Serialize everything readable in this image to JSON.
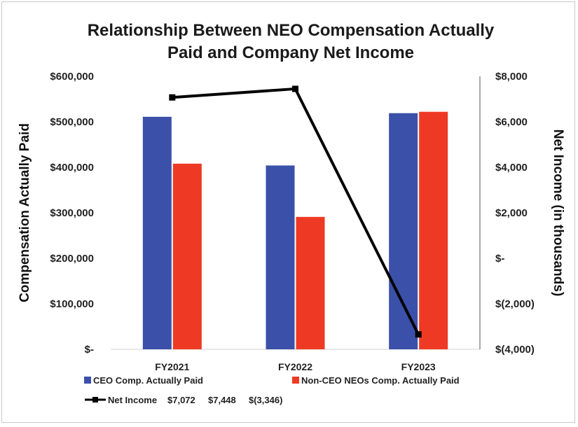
{
  "chart_data": {
    "type": "bar",
    "title_lines": [
      "Relationship Between NEO Compensation Actually",
      "Paid and Company Net Income"
    ],
    "categories": [
      "FY2021",
      "FY2022",
      "FY2023"
    ],
    "series": [
      {
        "name": "CEO Comp. Actually Paid",
        "type": "bar",
        "axis": "left",
        "color": "#3B50A8",
        "values": [
          511000,
          404000,
          519000
        ]
      },
      {
        "name": "Non-CEO NEOs Comp. Actually Paid",
        "type": "bar",
        "axis": "left",
        "color": "#EE3A24",
        "values": [
          408000,
          291000,
          522000
        ]
      },
      {
        "name": "Net Income",
        "type": "line",
        "axis": "right",
        "color": "#000000",
        "values": [
          7072,
          7448,
          -3346
        ]
      }
    ],
    "ylabel_left": "Compensation Actually Paid",
    "ylabel_right": "Net Income (in thousands)",
    "ylim_left": [
      0,
      600000
    ],
    "ylim_right": [
      -4000,
      8000
    ],
    "left_ticks": [
      "$-",
      "$100,000",
      "$200,000",
      "$300,000",
      "$400,000",
      "$500,000",
      "$600,000"
    ],
    "right_ticks": [
      "$(4,000)",
      "$(2,000)",
      "$-",
      "$2,000",
      "$4,000",
      "$6,000",
      "$8,000"
    ],
    "legend": {
      "bar_entries": [
        "CEO Comp. Actually Paid",
        "Non-CEO NEOs Comp. Actually Paid"
      ],
      "line_entry": "Net Income",
      "line_values": [
        "$7,072",
        "$7,448",
        "$(3,346)"
      ]
    }
  }
}
